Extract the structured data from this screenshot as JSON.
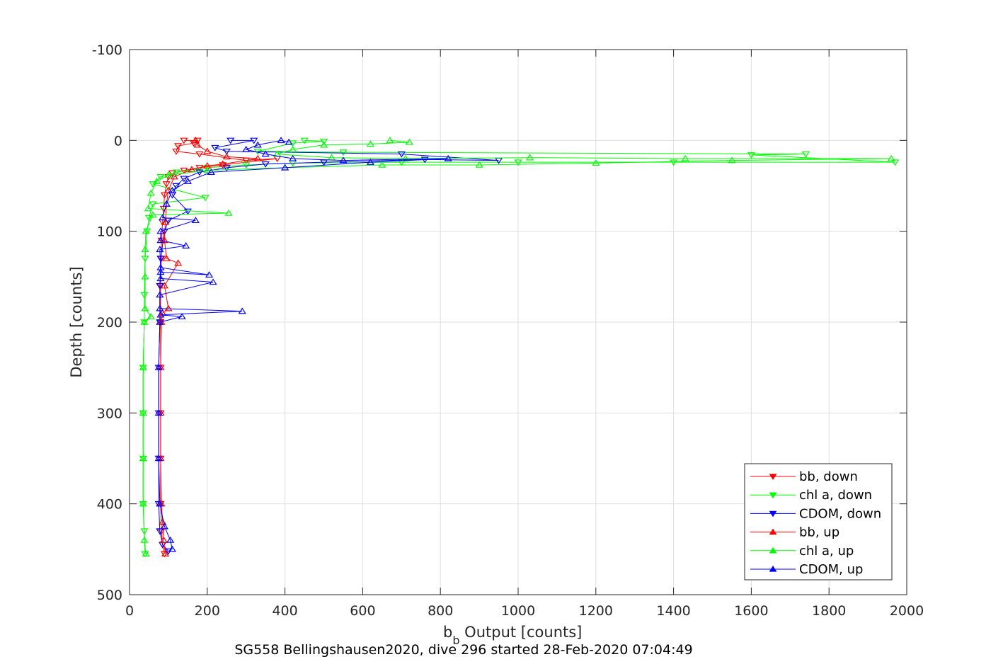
{
  "chart_data": {
    "type": "line",
    "title": "SG558 Bellingshausen2020, dive 296 started 28-Feb-2020 07:04:49",
    "xlabel_main": "b",
    "xlabel_sub": "b",
    "xlabel_rest": " Output [counts]",
    "ylabel": "Depth [counts]",
    "xlim": [
      0,
      2000
    ],
    "ylim": [
      -100,
      500
    ],
    "y_reversed": true,
    "grid": true,
    "legend_position": "bottom-right",
    "x_ticks": [
      0,
      200,
      400,
      600,
      800,
      1000,
      1200,
      1400,
      1600,
      1800,
      2000
    ],
    "y_ticks": [
      -100,
      0,
      100,
      200,
      300,
      400,
      500
    ],
    "series": [
      {
        "name": "bb, down",
        "color": "#ff0000",
        "marker": "triangle-down",
        "points": [
          [
            140,
            0
          ],
          [
            175,
            0
          ],
          [
            165,
            3
          ],
          [
            125,
            6
          ],
          [
            120,
            12
          ],
          [
            180,
            15
          ],
          [
            300,
            22
          ],
          [
            380,
            20
          ],
          [
            240,
            27
          ],
          [
            180,
            30
          ],
          [
            140,
            33
          ],
          [
            110,
            36
          ],
          [
            100,
            40
          ],
          [
            95,
            48
          ],
          [
            90,
            60
          ],
          [
            88,
            75
          ],
          [
            85,
            90
          ],
          [
            82,
            110
          ],
          [
            82,
            130
          ],
          [
            80,
            160
          ],
          [
            80,
            200
          ],
          [
            80,
            250
          ],
          [
            80,
            300
          ],
          [
            80,
            350
          ],
          [
            80,
            400
          ],
          [
            82,
            430
          ],
          [
            85,
            445
          ],
          [
            90,
            455
          ]
        ]
      },
      {
        "name": "chl a, down",
        "color": "#00ff00",
        "marker": "triangle-down",
        "points": [
          [
            450,
            0
          ],
          [
            500,
            1
          ],
          [
            420,
            3
          ],
          [
            330,
            12
          ],
          [
            550,
            13
          ],
          [
            1740,
            15
          ],
          [
            1600,
            16
          ],
          [
            1970,
            24
          ],
          [
            1400,
            24
          ],
          [
            1000,
            24
          ],
          [
            700,
            24
          ],
          [
            420,
            25
          ],
          [
            300,
            27
          ],
          [
            200,
            30
          ],
          [
            120,
            35
          ],
          [
            80,
            40
          ],
          [
            60,
            48
          ],
          [
            195,
            63
          ],
          [
            60,
            70
          ],
          [
            50,
            85
          ],
          [
            45,
            100
          ],
          [
            40,
            130
          ],
          [
            38,
            170
          ],
          [
            38,
            200
          ],
          [
            35,
            250
          ],
          [
            35,
            300
          ],
          [
            35,
            350
          ],
          [
            35,
            400
          ],
          [
            38,
            430
          ],
          [
            40,
            455
          ]
        ]
      },
      {
        "name": "CDOM, down",
        "color": "#0000ff",
        "marker": "triangle-down",
        "points": [
          [
            260,
            0
          ],
          [
            320,
            0
          ],
          [
            220,
            8
          ],
          [
            250,
            12
          ],
          [
            700,
            15
          ],
          [
            950,
            22
          ],
          [
            760,
            21
          ],
          [
            500,
            24
          ],
          [
            350,
            26
          ],
          [
            250,
            30
          ],
          [
            180,
            35
          ],
          [
            140,
            42
          ],
          [
            120,
            50
          ],
          [
            110,
            60
          ],
          [
            150,
            78
          ],
          [
            100,
            88
          ],
          [
            90,
            100
          ],
          [
            80,
            130
          ],
          [
            78,
            160
          ],
          [
            78,
            200
          ],
          [
            75,
            250
          ],
          [
            75,
            300
          ],
          [
            75,
            350
          ],
          [
            75,
            400
          ],
          [
            78,
            430
          ],
          [
            85,
            445
          ],
          [
            100,
            452
          ]
        ]
      },
      {
        "name": "bb, up",
        "color": "#ff0000",
        "marker": "triangle-up",
        "points": [
          [
            92,
            455
          ],
          [
            88,
            440
          ],
          [
            85,
            420
          ],
          [
            82,
            400
          ],
          [
            80,
            350
          ],
          [
            80,
            300
          ],
          [
            80,
            250
          ],
          [
            82,
            200
          ],
          [
            85,
            190
          ],
          [
            100,
            185
          ],
          [
            90,
            160
          ],
          [
            125,
            135
          ],
          [
            95,
            130
          ],
          [
            90,
            110
          ],
          [
            92,
            90
          ],
          [
            95,
            70
          ],
          [
            100,
            55
          ],
          [
            115,
            40
          ],
          [
            160,
            32
          ],
          [
            200,
            28
          ],
          [
            240,
            26
          ],
          [
            330,
            20
          ],
          [
            250,
            18
          ],
          [
            200,
            12
          ],
          [
            175,
            5
          ],
          [
            170,
            0
          ]
        ]
      },
      {
        "name": "chl a, up",
        "color": "#00ff00",
        "marker": "triangle-up",
        "points": [
          [
            42,
            455
          ],
          [
            38,
            440
          ],
          [
            35,
            400
          ],
          [
            35,
            350
          ],
          [
            35,
            300
          ],
          [
            35,
            250
          ],
          [
            38,
            200
          ],
          [
            55,
            194
          ],
          [
            40,
            185
          ],
          [
            40,
            150
          ],
          [
            40,
            120
          ],
          [
            42,
            100
          ],
          [
            60,
            82
          ],
          [
            255,
            80
          ],
          [
            48,
            75
          ],
          [
            55,
            58
          ],
          [
            70,
            45
          ],
          [
            100,
            38
          ],
          [
            200,
            33
          ],
          [
            400,
            30
          ],
          [
            650,
            27
          ],
          [
            900,
            27
          ],
          [
            1200,
            25
          ],
          [
            1550,
            22
          ],
          [
            1960,
            20
          ],
          [
            1430,
            20
          ],
          [
            1030,
            19
          ],
          [
            710,
            20
          ],
          [
            520,
            19
          ],
          [
            380,
            15
          ],
          [
            420,
            10
          ],
          [
            500,
            5
          ],
          [
            620,
            4
          ],
          [
            720,
            2
          ],
          [
            670,
            0
          ]
        ]
      },
      {
        "name": "CDOM, up",
        "color": "#0000ff",
        "marker": "triangle-up",
        "points": [
          [
            110,
            450
          ],
          [
            105,
            440
          ],
          [
            90,
            425
          ],
          [
            78,
            400
          ],
          [
            75,
            350
          ],
          [
            75,
            300
          ],
          [
            75,
            250
          ],
          [
            78,
            200
          ],
          [
            135,
            194
          ],
          [
            80,
            192
          ],
          [
            290,
            188
          ],
          [
            78,
            185
          ],
          [
            78,
            170
          ],
          [
            215,
            156
          ],
          [
            80,
            152
          ],
          [
            80,
            145
          ],
          [
            205,
            148
          ],
          [
            80,
            140
          ],
          [
            78,
            120
          ],
          [
            145,
            116
          ],
          [
            80,
            110
          ],
          [
            80,
            100
          ],
          [
            170,
            88
          ],
          [
            85,
            85
          ],
          [
            95,
            70
          ],
          [
            110,
            55
          ],
          [
            150,
            45
          ],
          [
            210,
            35
          ],
          [
            400,
            30
          ],
          [
            620,
            24
          ],
          [
            820,
            20
          ],
          [
            550,
            22
          ],
          [
            420,
            20
          ],
          [
            350,
            15
          ],
          [
            300,
            10
          ],
          [
            330,
            5
          ],
          [
            390,
            0
          ],
          [
            410,
            2
          ]
        ]
      }
    ]
  }
}
